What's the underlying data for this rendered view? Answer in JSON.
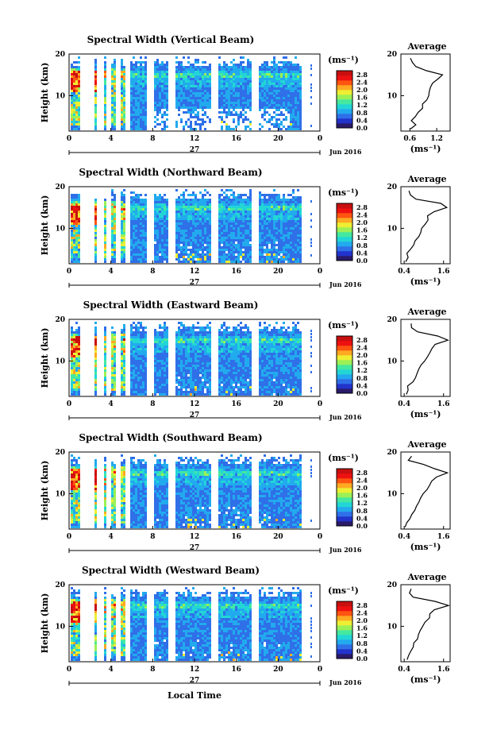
{
  "figure": {
    "x_axis_label": "Local Time",
    "month_label": "Jun 2016",
    "day_label": "27",
    "time_ticks": [
      "0",
      "4",
      "8",
      "12",
      "16",
      "20",
      "0"
    ],
    "height_label": "Height (km)",
    "height_ticks": [
      "20",
      "10"
    ],
    "unit_label": "(ms⁻¹)",
    "colorbar_ticks": [
      "2.8",
      "2.4",
      "2.0",
      "1.6",
      "1.2",
      "0.8",
      "0.4",
      "0.0"
    ],
    "average_title": "Average",
    "average_unit": "(ms⁻¹)",
    "colors": {
      "white": "#ffffff",
      "colormap": [
        "#2a1a6a",
        "#2233cc",
        "#2f6fe8",
        "#22aaee",
        "#22d6d6",
        "#44e8a0",
        "#9cf055",
        "#eeee33",
        "#ffaa22",
        "#ff5511",
        "#ee1111",
        "#c81010"
      ]
    }
  },
  "chart_data": [
    {
      "type": "heatmap",
      "title": "Spectral Width (Vertical Beam)",
      "quantity": "Spectral width",
      "x_range_hours": [
        0,
        24
      ],
      "y_range_km": [
        1.5,
        20
      ],
      "z_range": [
        0.0,
        3.0
      ],
      "average_profile": {
        "title": "Average",
        "x_ticks": [
          "0.6",
          "1.2"
        ],
        "x_range": [
          0.4,
          1.5
        ],
        "height_km": [
          2,
          3,
          4,
          5,
          6,
          7,
          8,
          9,
          10,
          11,
          12,
          13,
          14,
          15,
          16,
          17,
          18,
          19
        ],
        "values": [
          0.62,
          0.75,
          0.66,
          0.72,
          0.8,
          0.86,
          0.9,
          0.95,
          1.0,
          1.02,
          1.05,
          1.1,
          1.25,
          1.35,
          1.0,
          0.72,
          0.68,
          0.64
        ]
      }
    },
    {
      "type": "heatmap",
      "title": "Spectral Width (Northward Beam)",
      "quantity": "Spectral width",
      "x_range_hours": [
        0,
        24
      ],
      "y_range_km": [
        1.5,
        20
      ],
      "z_range": [
        0.0,
        3.0
      ],
      "average_profile": {
        "title": "Average",
        "x_ticks": [
          "0.4",
          "1.6"
        ],
        "x_range": [
          0.3,
          1.8
        ],
        "height_km": [
          2,
          3,
          4,
          5,
          6,
          7,
          8,
          9,
          10,
          11,
          12,
          13,
          14,
          15,
          16,
          17,
          18,
          19
        ],
        "values": [
          0.45,
          0.5,
          0.5,
          0.6,
          0.7,
          0.75,
          0.82,
          0.88,
          0.95,
          1.02,
          1.15,
          1.1,
          1.3,
          1.7,
          1.5,
          0.75,
          0.6,
          0.55
        ]
      }
    },
    {
      "type": "heatmap",
      "title": "Spectral Width (Eastward Beam)",
      "quantity": "Spectral width",
      "x_range_hours": [
        0,
        24
      ],
      "y_range_km": [
        1.5,
        20
      ],
      "z_range": [
        0.0,
        3.0
      ],
      "average_profile": {
        "title": "Average",
        "x_ticks": [
          "0.4",
          "1.6"
        ],
        "x_range": [
          0.3,
          1.8
        ],
        "height_km": [
          2,
          3,
          4,
          5,
          6,
          7,
          8,
          9,
          10,
          11,
          12,
          13,
          14,
          15,
          16,
          17,
          18,
          19
        ],
        "values": [
          0.45,
          0.55,
          0.5,
          0.65,
          0.72,
          0.78,
          0.85,
          0.92,
          1.0,
          1.1,
          1.2,
          1.25,
          1.35,
          1.75,
          1.4,
          0.8,
          0.65,
          0.6
        ]
      }
    },
    {
      "type": "heatmap",
      "title": "Spectral Width (Southward Beam)",
      "quantity": "Spectral width",
      "x_range_hours": [
        0,
        24
      ],
      "y_range_km": [
        1.5,
        20
      ],
      "z_range": [
        0.0,
        3.0
      ],
      "average_profile": {
        "title": "Average",
        "x_ticks": [
          "0.4",
          "1.6"
        ],
        "x_range": [
          0.3,
          1.8
        ],
        "height_km": [
          2,
          3,
          4,
          5,
          6,
          7,
          8,
          9,
          10,
          11,
          12,
          13,
          14,
          15,
          16,
          17,
          18,
          19
        ],
        "values": [
          0.45,
          0.5,
          0.55,
          0.62,
          0.7,
          0.8,
          0.85,
          0.9,
          1.0,
          1.1,
          1.15,
          1.25,
          1.4,
          1.7,
          1.3,
          1.0,
          0.55,
          0.6
        ]
      }
    },
    {
      "type": "heatmap",
      "title": "Spectral Width (Westward Beam)",
      "quantity": "Spectral width",
      "x_range_hours": [
        0,
        24
      ],
      "y_range_km": [
        1.5,
        20
      ],
      "z_range": [
        0.0,
        3.0
      ],
      "average_profile": {
        "title": "Average",
        "x_ticks": [
          "0.4",
          "1.6"
        ],
        "x_range": [
          0.3,
          1.8
        ],
        "height_km": [
          2,
          3,
          4,
          5,
          6,
          7,
          8,
          9,
          10,
          11,
          12,
          13,
          14,
          15,
          16,
          17,
          18,
          19
        ],
        "values": [
          0.5,
          0.52,
          0.58,
          0.66,
          0.72,
          0.78,
          0.85,
          0.9,
          0.98,
          1.05,
          1.15,
          1.2,
          1.3,
          1.75,
          1.35,
          0.7,
          0.55,
          0.6
        ]
      }
    }
  ]
}
